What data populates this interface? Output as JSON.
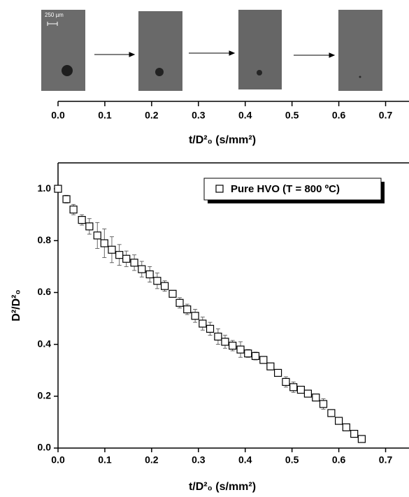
{
  "image_strip": {
    "scale_bar_label": "250 µm",
    "xlim": [
      0,
      0.75
    ],
    "xticks": [
      {
        "value": 0,
        "label": "0.0"
      },
      0.1,
      0.2,
      0.3,
      0.4,
      0.5,
      0.6,
      0.7
    ],
    "xlabel": "t/D²₀ (s/mm²)"
  },
  "chart_data": {
    "type": "scatter",
    "xlabel": "t/D²₀ (s/mm²)",
    "ylabel": "D²/D²₀",
    "xlim": [
      0,
      0.75
    ],
    "ylim": [
      0,
      1.1
    ],
    "xticks": [
      {
        "value": 0,
        "label": "0.0"
      },
      0.1,
      0.2,
      0.3,
      0.4,
      0.5,
      0.6,
      0.7
    ],
    "yticks": [
      {
        "value": 0,
        "label": "0.0"
      },
      0.2,
      0.4,
      0.6,
      0.8,
      {
        "value": 1,
        "label": "1.0"
      }
    ],
    "legend": "upper right",
    "series": [
      {
        "name": "Pure HVO (T = 800 ºC)",
        "color": "#000000",
        "x": [
          0.0,
          0.018,
          0.033,
          0.051,
          0.067,
          0.084,
          0.099,
          0.115,
          0.131,
          0.146,
          0.163,
          0.179,
          0.196,
          0.212,
          0.228,
          0.245,
          0.26,
          0.276,
          0.293,
          0.309,
          0.325,
          0.342,
          0.357,
          0.373,
          0.39,
          0.406,
          0.422,
          0.439,
          0.454,
          0.47,
          0.487,
          0.503,
          0.519,
          0.534,
          0.551,
          0.567,
          0.584,
          0.6,
          0.616,
          0.633,
          0.649
        ],
        "values": [
          1.0,
          0.96,
          0.92,
          0.88,
          0.855,
          0.82,
          0.79,
          0.765,
          0.745,
          0.73,
          0.715,
          0.69,
          0.67,
          0.645,
          0.625,
          0.595,
          0.56,
          0.535,
          0.51,
          0.48,
          0.46,
          0.43,
          0.41,
          0.395,
          0.38,
          0.365,
          0.355,
          0.34,
          0.315,
          0.29,
          0.255,
          0.235,
          0.225,
          0.21,
          0.195,
          0.17,
          0.135,
          0.105,
          0.08,
          0.055,
          0.035
        ],
        "errors": [
          0,
          0.015,
          0.02,
          0.02,
          0.03,
          0.05,
          0.055,
          0.05,
          0.04,
          0.03,
          0.03,
          0.03,
          0.03,
          0.03,
          0.02,
          0.01,
          0.02,
          0.02,
          0.025,
          0.025,
          0.025,
          0.03,
          0.025,
          0.02,
          0.03,
          0.015,
          0.015,
          0.01,
          0.01,
          0.01,
          0.02,
          0.02,
          0.01,
          0.01,
          0.01,
          0.02,
          0.01,
          0.01,
          0.01,
          0.01,
          0.01
        ]
      }
    ]
  }
}
